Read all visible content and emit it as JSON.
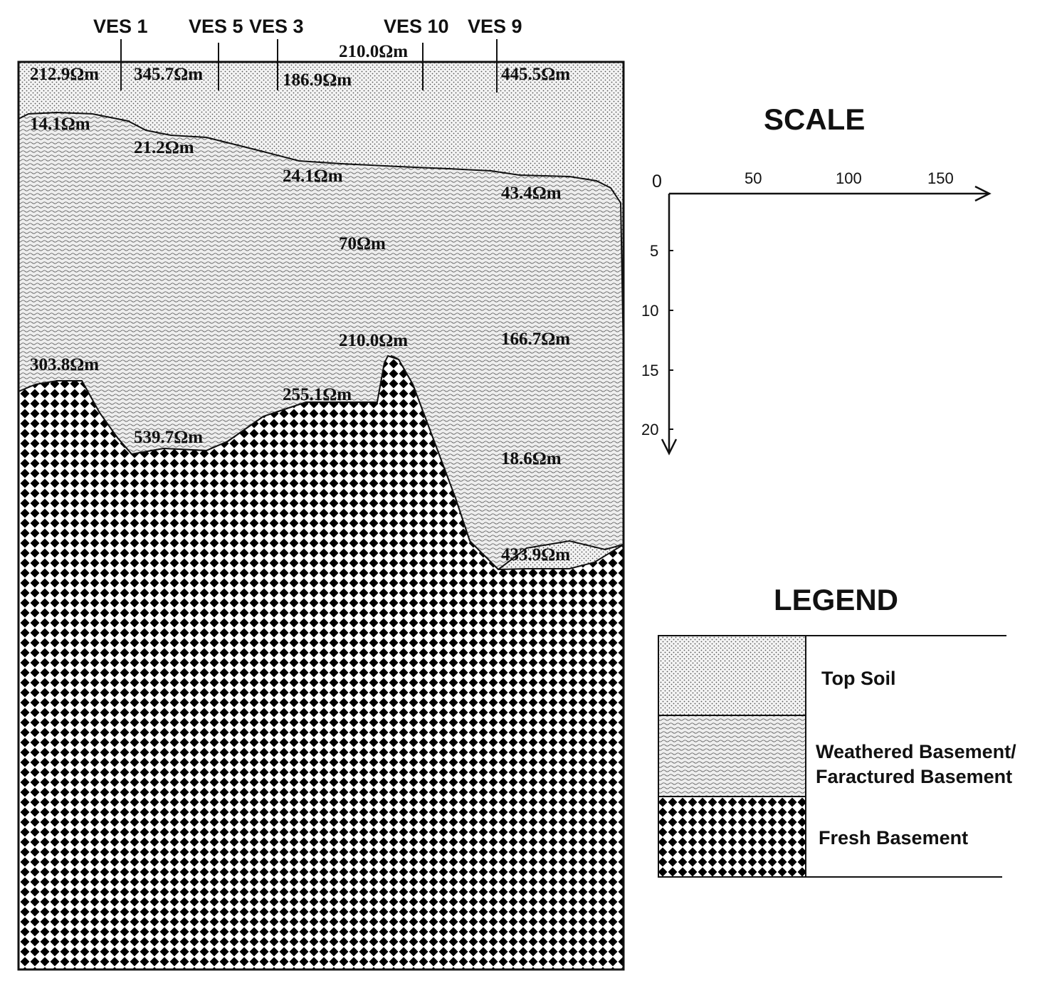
{
  "section": {
    "ves_labels": [
      "VES 1",
      "VES 5",
      "VES 3",
      "VES 10",
      "VES 9"
    ],
    "topsoil": [
      "212.9Ωm",
      "345.7Ωm",
      "186.9Ωm",
      "210.0Ωm",
      "445.5Ωm"
    ],
    "weathered": [
      "14.1Ωm",
      "21.2Ωm",
      "24.1Ωm",
      "43.4Ωm",
      "70Ωm",
      "166.7Ωm",
      "18.6Ωm"
    ],
    "fresh": [
      "303.8Ωm",
      "539.7Ωm",
      "255.1Ωm",
      "210.0Ωm",
      "433.9Ωm"
    ]
  },
  "scale": {
    "title": "SCALE",
    "origin": "0",
    "x_ticks": [
      "50",
      "100",
      "150"
    ],
    "y_ticks": [
      "5",
      "10",
      "15",
      "20"
    ]
  },
  "legend": {
    "title": "LEGEND",
    "items": [
      {
        "lines": [
          "Top Soil"
        ]
      },
      {
        "lines": [
          "Weathered Basement/",
          "Faractured Basement"
        ]
      },
      {
        "lines": [
          "Fresh Basement"
        ]
      }
    ]
  }
}
